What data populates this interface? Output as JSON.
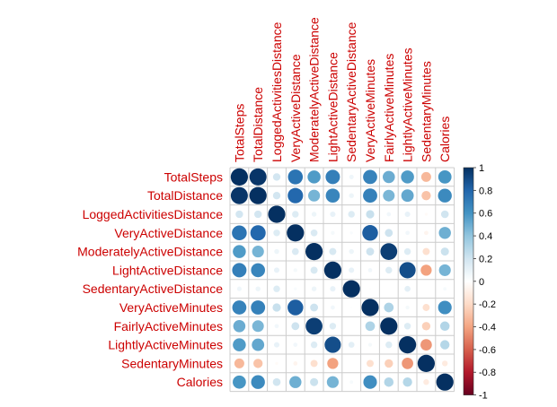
{
  "chart_data": {
    "type": "heatmap",
    "title": "",
    "xlabel": "",
    "ylabel": "",
    "variables": [
      "TotalSteps",
      "TotalDistance",
      "LoggedActivitiesDistance",
      "VeryActiveDistance",
      "ModeratelyActiveDistance",
      "LightActiveDistance",
      "SedentaryActiveDistance",
      "VeryActiveMinutes",
      "FairlyActiveMinutes",
      "LightlyActiveMinutes",
      "SedentaryMinutes",
      "Calories"
    ],
    "matrix": [
      [
        1.0,
        0.98,
        0.19,
        0.74,
        0.57,
        0.69,
        0.07,
        0.67,
        0.5,
        0.57,
        -0.33,
        0.59
      ],
      [
        0.98,
        1.0,
        0.19,
        0.79,
        0.47,
        0.66,
        0.08,
        0.68,
        0.46,
        0.52,
        -0.29,
        0.64
      ],
      [
        0.19,
        0.19,
        1.0,
        0.15,
        0.08,
        0.1,
        0.15,
        0.23,
        0.06,
        0.1,
        -0.03,
        0.2
      ],
      [
        0.74,
        0.79,
        0.15,
        1.0,
        0.16,
        0.05,
        0.03,
        0.83,
        0.21,
        0.06,
        -0.06,
        0.49
      ],
      [
        0.57,
        0.47,
        0.08,
        0.16,
        1.0,
        0.17,
        0.08,
        0.21,
        0.95,
        0.15,
        -0.17,
        0.22
      ],
      [
        0.69,
        0.66,
        0.1,
        0.05,
        0.17,
        1.0,
        0.1,
        0.06,
        0.15,
        0.89,
        -0.41,
        0.47
      ],
      [
        0.07,
        0.08,
        0.15,
        0.03,
        0.08,
        0.1,
        1.0,
        0.01,
        0.0,
        0.12,
        0.0,
        0.04
      ],
      [
        0.67,
        0.68,
        0.23,
        0.83,
        0.21,
        0.06,
        0.01,
        1.0,
        0.31,
        0.05,
        -0.17,
        0.62
      ],
      [
        0.5,
        0.46,
        0.06,
        0.21,
        0.95,
        0.15,
        0.0,
        0.31,
        1.0,
        0.15,
        -0.24,
        0.3
      ],
      [
        0.57,
        0.52,
        0.1,
        0.06,
        0.15,
        0.89,
        0.12,
        0.05,
        0.15,
        1.0,
        -0.44,
        0.29
      ],
      [
        -0.33,
        -0.29,
        -0.03,
        -0.06,
        -0.17,
        -0.41,
        0.0,
        -0.17,
        -0.24,
        -0.44,
        1.0,
        -0.11
      ],
      [
        0.59,
        0.64,
        0.2,
        0.49,
        0.22,
        0.47,
        0.04,
        0.62,
        0.3,
        0.29,
        -0.11,
        1.0
      ]
    ],
    "color_scale": {
      "min": -1,
      "max": 1,
      "ticks": [
        "1",
        "0.8",
        "0.6",
        "0.4",
        "0.2",
        "0",
        "-0.2",
        "-0.4",
        "-0.6",
        "-0.8",
        "-1"
      ],
      "stops": [
        "#67001F",
        "#B2182B",
        "#D6604D",
        "#F4A582",
        "#FDDBC7",
        "#FFFFFF",
        "#D1E5F0",
        "#92C5DE",
        "#4393C3",
        "#2166AC",
        "#053061"
      ]
    },
    "label_color": "#CC0000",
    "grid": true,
    "glyph": "circle",
    "legend": "right"
  }
}
